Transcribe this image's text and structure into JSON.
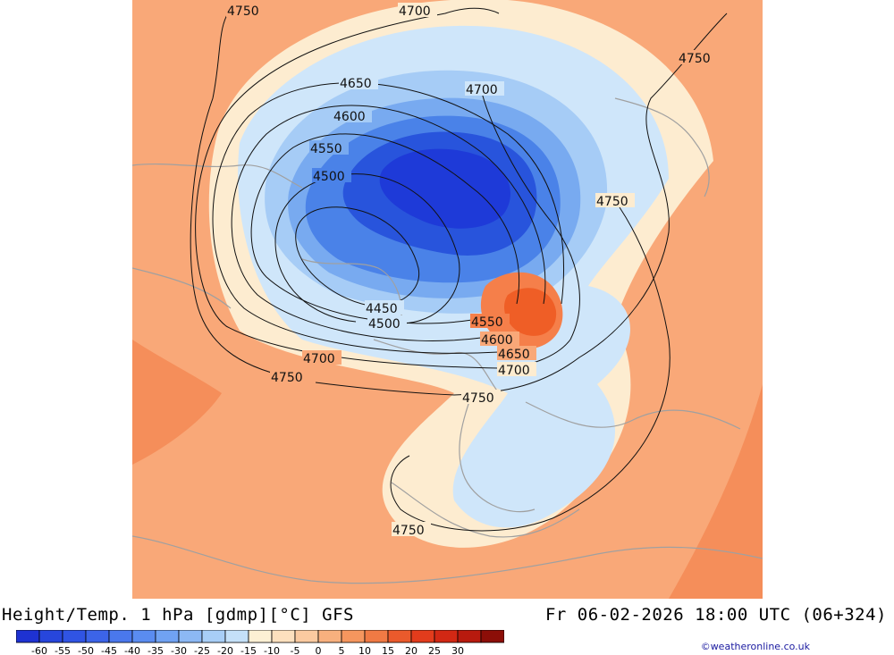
{
  "title": "Height/Temp. 1 hPa [gdmp][°C] GFS",
  "datetime": "Fr 06-02-2026 18:00 UTC (06+324)",
  "credit": "©weatheronline.co.uk",
  "legend": {
    "ticks": [
      "-60",
      "-55",
      "-50",
      "-45",
      "-40",
      "-35",
      "-30",
      "-25",
      "-20",
      "-15",
      "-10",
      "-5",
      "0",
      "5",
      "10",
      "15",
      "20",
      "25",
      "30"
    ],
    "colors": [
      "#1e32d2",
      "#2746dc",
      "#3054e4",
      "#3c64e8",
      "#4a78ec",
      "#5a8cf0",
      "#70a2f2",
      "#8cb8f4",
      "#a8cef6",
      "#c4e0f8",
      "#fdf0d4",
      "#fde0be",
      "#fbcaa0",
      "#f8b07e",
      "#f5965e",
      "#f07a44",
      "#ea5a2c",
      "#e23c1c",
      "#d22814",
      "#b81a0e",
      "#8c0e08"
    ]
  },
  "map": {
    "colors": {
      "background": "#f9a878",
      "pale": "#fdecd0",
      "lightblue": "#cfe6fa",
      "blue1": "#a6ccf6",
      "blue2": "#78aaf0",
      "blue3": "#4a82e8",
      "blue4": "#2854dc",
      "blue5": "#1e3ad8",
      "warm": "#f57f4a",
      "hot": "#ef5e26",
      "contour": "#111111",
      "coast": "#a0a0a0"
    },
    "contour_labels": [
      {
        "text": "4750"
      },
      {
        "text": "4700"
      },
      {
        "text": "4750"
      },
      {
        "text": "4650"
      },
      {
        "text": "4700"
      },
      {
        "text": "4600"
      },
      {
        "text": "4550"
      },
      {
        "text": "4500"
      },
      {
        "text": "4750"
      },
      {
        "text": "4450"
      },
      {
        "text": "4500"
      },
      {
        "text": "4550"
      },
      {
        "text": "4600"
      },
      {
        "text": "4650"
      },
      {
        "text": "4700"
      },
      {
        "text": "4700"
      },
      {
        "text": "4750"
      },
      {
        "text": "4750"
      },
      {
        "text": "4750"
      }
    ]
  }
}
